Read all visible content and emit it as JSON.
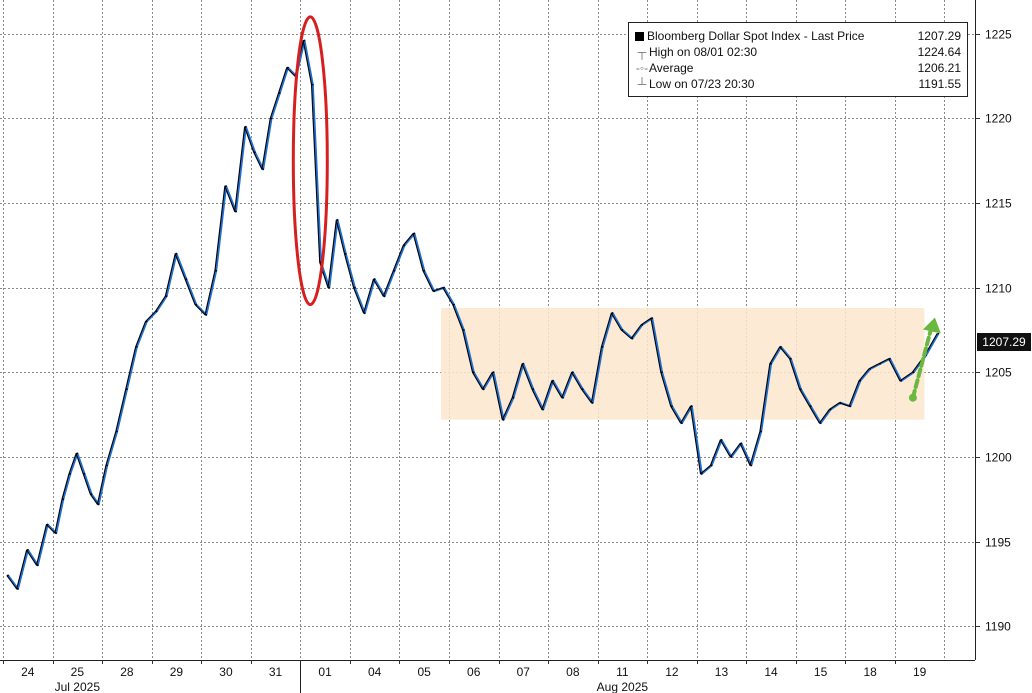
{
  "chart_data": {
    "type": "line",
    "title": "",
    "xlabel": "",
    "ylabel": "",
    "ylim": [
      1188,
      1227
    ],
    "y_ticks": [
      1190,
      1195,
      1200,
      1205,
      1210,
      1215,
      1220,
      1225
    ],
    "y_axis_side": "right",
    "grid": true,
    "legend_placement": "top-right",
    "x_tick_labels": [
      "24",
      "25",
      "28",
      "29",
      "30",
      "31",
      "01",
      "04",
      "05",
      "06",
      "07",
      "08",
      "11",
      "12",
      "13",
      "14",
      "15",
      "18",
      "19"
    ],
    "month_labels": [
      {
        "label": "Jul 2025",
        "at": "25"
      },
      {
        "label": "Aug 2025",
        "at": "11"
      }
    ],
    "series": [
      {
        "name": "Bloomberg Dollar Spot Index - Last Price",
        "color": "#000000",
        "highlight_color": "#1f6fd1",
        "points": [
          [
            "24",
            1193.0
          ],
          [
            "24",
            1192.2
          ],
          [
            "24",
            1194.5
          ],
          [
            "24",
            1193.6
          ],
          [
            "24",
            1196.0
          ],
          [
            "25",
            1195.5
          ],
          [
            "25",
            1197.5
          ],
          [
            "25",
            1199.0
          ],
          [
            "25",
            1200.2
          ],
          [
            "25",
            1199.0
          ],
          [
            "25",
            1197.8
          ],
          [
            "25",
            1197.2
          ],
          [
            "28",
            1199.5
          ],
          [
            "28",
            1201.5
          ],
          [
            "28",
            1204.0
          ],
          [
            "28",
            1206.5
          ],
          [
            "28",
            1208.0
          ],
          [
            "29",
            1208.6
          ],
          [
            "29",
            1209.5
          ],
          [
            "29",
            1212.0
          ],
          [
            "29",
            1210.5
          ],
          [
            "29",
            1209.0
          ],
          [
            "30",
            1208.4
          ],
          [
            "30",
            1211.0
          ],
          [
            "30",
            1216.0
          ],
          [
            "30",
            1214.5
          ],
          [
            "30",
            1219.5
          ],
          [
            "31",
            1218.0
          ],
          [
            "31",
            1217.0
          ],
          [
            "31",
            1220.0
          ],
          [
            "31",
            1221.5
          ],
          [
            "31",
            1223.0
          ],
          [
            "31",
            1222.5
          ],
          [
            "01",
            1224.6
          ],
          [
            "01",
            1222.0
          ],
          [
            "01",
            1211.5
          ],
          [
            "01",
            1210.0
          ],
          [
            "01",
            1214.0
          ],
          [
            "01",
            1212.0
          ],
          [
            "04",
            1210.0
          ],
          [
            "04",
            1208.5
          ],
          [
            "04",
            1210.5
          ],
          [
            "04",
            1209.5
          ],
          [
            "04",
            1211.0
          ],
          [
            "05",
            1212.5
          ],
          [
            "05",
            1213.2
          ],
          [
            "05",
            1211.0
          ],
          [
            "05",
            1209.8
          ],
          [
            "05",
            1210.0
          ],
          [
            "06",
            1209.0
          ],
          [
            "06",
            1207.5
          ],
          [
            "06",
            1205.0
          ],
          [
            "06",
            1204.0
          ],
          [
            "06",
            1205.0
          ],
          [
            "07",
            1202.2
          ],
          [
            "07",
            1203.5
          ],
          [
            "07",
            1205.5
          ],
          [
            "07",
            1204.0
          ],
          [
            "07",
            1202.8
          ],
          [
            "08",
            1204.5
          ],
          [
            "08",
            1203.5
          ],
          [
            "08",
            1205.0
          ],
          [
            "08",
            1204.0
          ],
          [
            "08",
            1203.2
          ],
          [
            "11",
            1206.5
          ],
          [
            "11",
            1208.5
          ],
          [
            "11",
            1207.5
          ],
          [
            "11",
            1207.0
          ],
          [
            "11",
            1207.8
          ],
          [
            "12",
            1208.2
          ],
          [
            "12",
            1205.0
          ],
          [
            "12",
            1203.0
          ],
          [
            "12",
            1202.0
          ],
          [
            "12",
            1203.0
          ],
          [
            "13",
            1199.0
          ],
          [
            "13",
            1199.5
          ],
          [
            "13",
            1201.0
          ],
          [
            "13",
            1200.0
          ],
          [
            "13",
            1200.8
          ],
          [
            "14",
            1199.5
          ],
          [
            "14",
            1201.5
          ],
          [
            "14",
            1205.5
          ],
          [
            "14",
            1206.5
          ],
          [
            "14",
            1205.8
          ],
          [
            "15",
            1204.0
          ],
          [
            "15",
            1203.0
          ],
          [
            "15",
            1202.0
          ],
          [
            "15",
            1202.8
          ],
          [
            "15",
            1203.2
          ],
          [
            "18",
            1203.0
          ],
          [
            "18",
            1204.5
          ],
          [
            "18",
            1205.2
          ],
          [
            "18",
            1205.5
          ],
          [
            "18",
            1205.8
          ],
          [
            "19",
            1204.5
          ],
          [
            "19",
            1205.0
          ],
          [
            "19",
            1206.0
          ],
          [
            "19",
            1207.29
          ]
        ]
      }
    ],
    "legend": {
      "rows": [
        {
          "symbol": "square",
          "label": "Bloomberg Dollar Spot Index - Last Price",
          "value": "1207.29"
        },
        {
          "symbol": "high-icon",
          "label": "High on 08/01 02:30",
          "value": "1224.64"
        },
        {
          "symbol": "average-icon",
          "label": "Average",
          "value": "1206.21"
        },
        {
          "symbol": "low-icon",
          "label": "Low on 07/23 20:30",
          "value": "1191.55"
        }
      ]
    },
    "last_price_tag": "1207.29",
    "annotations": [
      {
        "kind": "ellipse",
        "color": "#d6201f",
        "x": "01",
        "y_range": [
          1209.0,
          1226.0
        ]
      },
      {
        "kind": "band",
        "color": "#fde6cc",
        "x_range": [
          "06",
          "19"
        ],
        "y_range": [
          1202.2,
          1208.8
        ]
      },
      {
        "kind": "arrow",
        "color": "#6ab840",
        "direction": "up",
        "from_y": 1203.5,
        "to_y": 1208.0,
        "at": "19"
      }
    ]
  }
}
